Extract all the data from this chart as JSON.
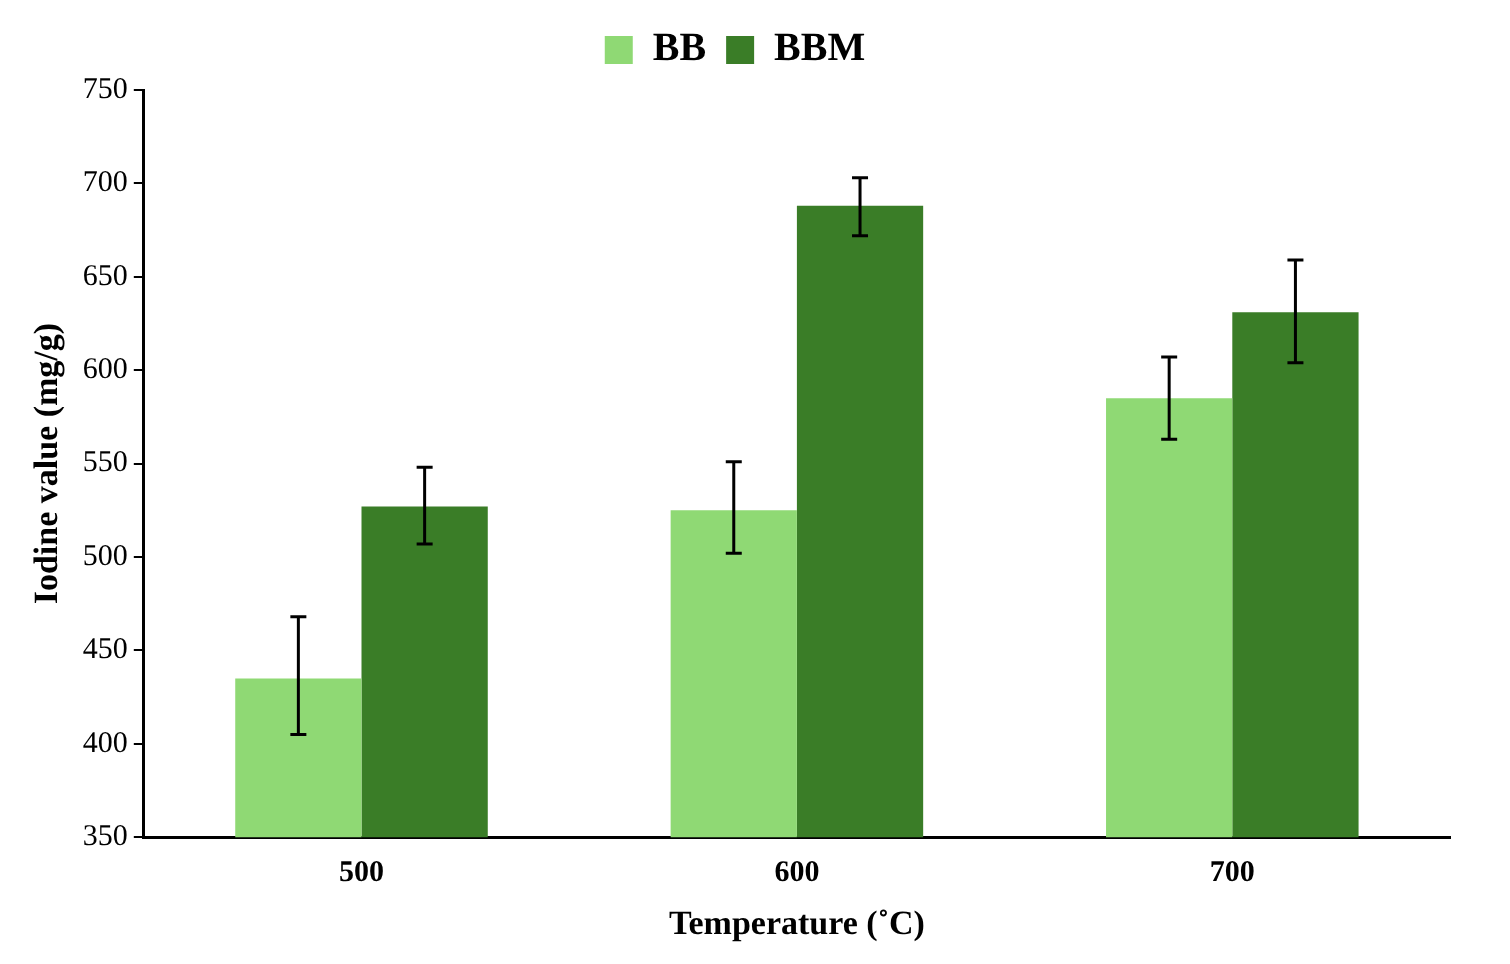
{
  "chart_data": {
    "type": "bar",
    "xlabel": "Temperature (˚C)",
    "ylabel": "Iodine value (mg/g)",
    "categories": [
      "500",
      "600",
      "700"
    ],
    "series": [
      {
        "name": "BB",
        "color": "#8fd974",
        "values": [
          435,
          525,
          585
        ],
        "errors": [
          [
            405,
            468
          ],
          [
            502,
            551
          ],
          [
            563,
            607
          ]
        ]
      },
      {
        "name": "BBM",
        "color": "#3a7d27",
        "values": [
          527,
          688,
          631
        ],
        "errors": [
          [
            507,
            548
          ],
          [
            672,
            703
          ],
          [
            604,
            659
          ]
        ]
      }
    ],
    "ylim": [
      350,
      750
    ],
    "yticks": [
      350,
      400,
      450,
      500,
      550,
      600,
      650,
      700,
      750
    ],
    "grid": false,
    "legend": "top"
  }
}
